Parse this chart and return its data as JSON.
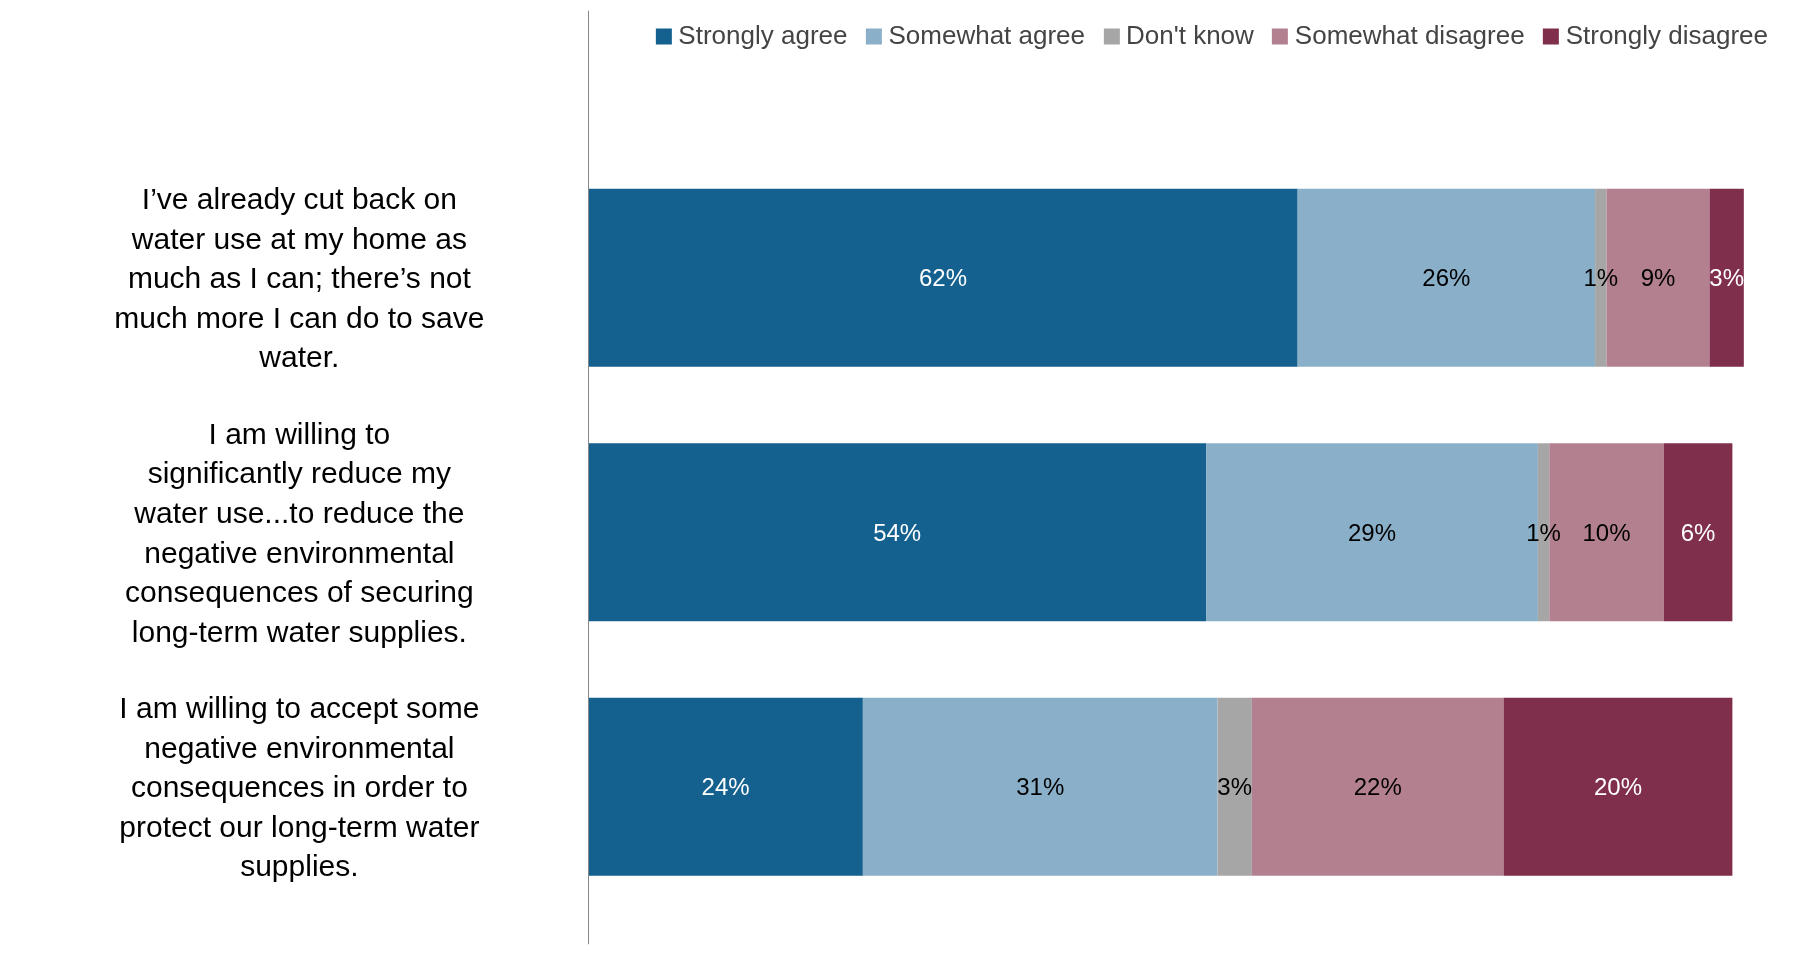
{
  "chart_data": {
    "type": "bar",
    "orientation": "horizontal",
    "stacked": true,
    "legend": "top",
    "grid": false,
    "tick_labels": "y",
    "categories": [
      "I’ve already cut back on water use at my home as much as I can; there’s not much more I can do to save water.",
      "I am willing to significantly reduce my water use...to reduce the negative environmental consequences of securing long-term water supplies.",
      "I am willing to accept some negative environmental consequences in order to protect our long-term water supplies."
    ],
    "series": [
      {
        "name": "Strongly agree",
        "color": "#14618f",
        "values": [
          62,
          54,
          24
        ],
        "value_labels": [
          "62%",
          "54%",
          "24%"
        ]
      },
      {
        "name": "Somewhat agree",
        "color": "#8aafc8",
        "values": [
          26,
          29,
          31
        ],
        "value_labels": [
          "26%",
          "29%",
          "31%"
        ]
      },
      {
        "name": "Don't know",
        "color": "#a6a6a6",
        "values": [
          1,
          1,
          3
        ],
        "value_labels": [
          "1%",
          "1%",
          "3%"
        ]
      },
      {
        "name": "Somewhat disagree",
        "color": "#b3808f",
        "values": [
          9,
          10,
          22
        ],
        "value_labels": [
          "9%",
          "10%",
          "22%"
        ]
      },
      {
        "name": "Strongly disagree",
        "color": "#7f2f4c",
        "values": [
          3,
          6,
          20
        ],
        "value_labels": [
          "3%",
          "6%",
          "20%"
        ]
      }
    ]
  }
}
